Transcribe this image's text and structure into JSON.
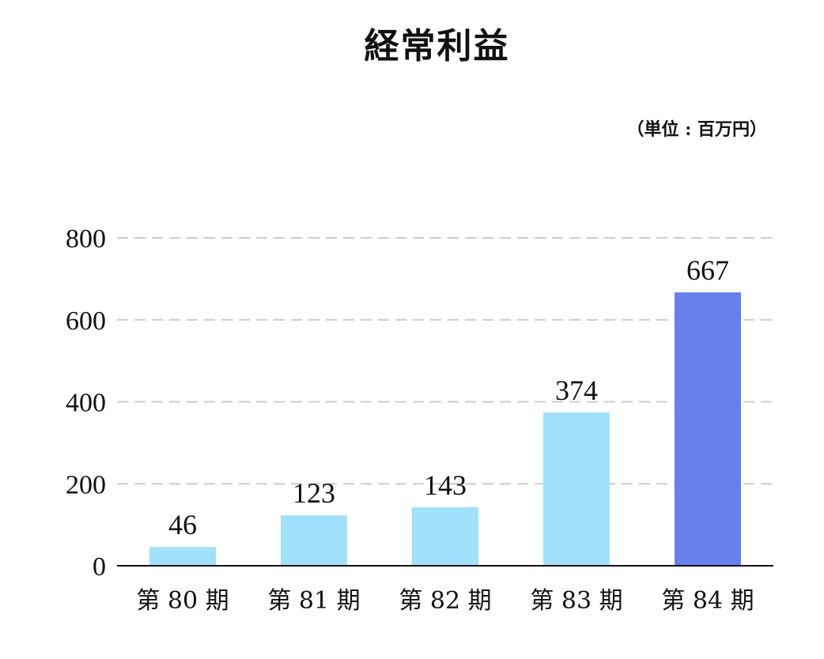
{
  "chart_data": {
    "type": "bar",
    "title": "経常利益",
    "unit_note": "（単位 : 百万円）",
    "categories": [
      "第 80 期",
      "第 81 期",
      "第 82 期",
      "第 83 期",
      "第 84 期"
    ],
    "values": [
      46,
      123,
      143,
      374,
      667
    ],
    "ylim": [
      0,
      800
    ],
    "yticks": [
      0,
      200,
      400,
      600,
      800
    ],
    "grid": true,
    "bar_colors": [
      "#a2e1fb",
      "#a2e1fb",
      "#a2e1fb",
      "#a2e1fb",
      "#6680ee"
    ],
    "grid_color": "#cccccc",
    "axis_color": "#111111"
  }
}
